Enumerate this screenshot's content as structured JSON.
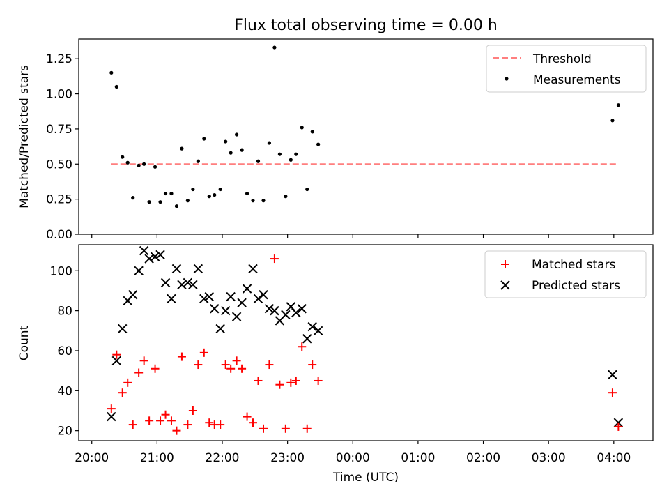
{
  "title": "Flux total observing time = 0.00 h",
  "chart_data": [
    {
      "type": "scatter",
      "ylabel": "Matched/Predicted stars",
      "xlabel": "",
      "x_unit": "hours since 20:00 UTC",
      "xlim": [
        -0.2,
        8.6
      ],
      "ylim": [
        0.0,
        1.39
      ],
      "yticks": [
        "0.00",
        "0.25",
        "0.50",
        "0.75",
        "1.00",
        "1.25"
      ],
      "legend_position": "top-right",
      "series": [
        {
          "name": "Threshold",
          "kind": "line",
          "style": "dashed",
          "color": "#ff7f7f",
          "x": [
            0.3,
            8.07
          ],
          "y": [
            0.5,
            0.5
          ]
        },
        {
          "name": "Measurements",
          "kind": "scatter",
          "marker": "dot",
          "color": "#000000",
          "x": [
            0.3,
            0.38,
            0.47,
            0.55,
            0.63,
            0.72,
            0.8,
            0.88,
            0.97,
            1.05,
            1.13,
            1.22,
            1.3,
            1.38,
            1.47,
            1.55,
            1.63,
            1.72,
            1.8,
            1.88,
            1.97,
            2.05,
            2.13,
            2.22,
            2.3,
            2.38,
            2.47,
            2.55,
            2.63,
            2.72,
            2.8,
            2.88,
            2.97,
            3.05,
            3.13,
            3.22,
            3.3,
            3.38,
            3.47,
            7.98,
            8.07
          ],
          "y": [
            1.15,
            1.05,
            0.55,
            0.51,
            0.26,
            0.49,
            0.5,
            0.23,
            0.48,
            0.23,
            0.29,
            0.29,
            0.2,
            0.61,
            0.24,
            0.32,
            0.52,
            0.68,
            0.27,
            0.28,
            0.32,
            0.66,
            0.58,
            0.71,
            0.6,
            0.29,
            0.24,
            0.52,
            0.24,
            0.65,
            1.33,
            0.57,
            0.27,
            0.53,
            0.57,
            0.76,
            0.32,
            0.73,
            0.64,
            0.81,
            0.92
          ]
        }
      ]
    },
    {
      "type": "scatter",
      "ylabel": "Count",
      "xlabel": "Time (UTC)",
      "x_unit": "hours since 20:00 UTC",
      "xlim": [
        -0.2,
        8.6
      ],
      "ylim": [
        15,
        113
      ],
      "yticks": [
        "20",
        "40",
        "60",
        "80",
        "100"
      ],
      "xticks": [
        "20:00",
        "21:00",
        "22:00",
        "23:00",
        "00:00",
        "01:00",
        "02:00",
        "03:00",
        "04:00"
      ],
      "legend_position": "top-right",
      "series": [
        {
          "name": "Matched stars",
          "marker": "plus",
          "color": "#ff0000",
          "x": [
            0.3,
            0.38,
            0.47,
            0.55,
            0.63,
            0.72,
            0.8,
            0.88,
            0.97,
            1.05,
            1.13,
            1.22,
            1.3,
            1.38,
            1.47,
            1.55,
            1.63,
            1.72,
            1.8,
            1.88,
            1.97,
            2.05,
            2.13,
            2.22,
            2.3,
            2.38,
            2.47,
            2.55,
            2.63,
            2.72,
            2.8,
            2.88,
            2.97,
            3.05,
            3.13,
            3.22,
            3.3,
            3.38,
            3.47,
            7.98,
            8.07
          ],
          "y": [
            31,
            58,
            39,
            44,
            23,
            49,
            55,
            25,
            51,
            25,
            28,
            25,
            20,
            57,
            23,
            30,
            53,
            59,
            24,
            23,
            23,
            53,
            51,
            55,
            51,
            27,
            24,
            45,
            21,
            53,
            106,
            43,
            21,
            44,
            45,
            62,
            21,
            53,
            45,
            39,
            22
          ]
        },
        {
          "name": "Predicted stars",
          "marker": "x",
          "color": "#000000",
          "x": [
            0.3,
            0.38,
            0.47,
            0.55,
            0.63,
            0.72,
            0.8,
            0.88,
            0.97,
            1.05,
            1.13,
            1.22,
            1.3,
            1.38,
            1.47,
            1.55,
            1.63,
            1.72,
            1.8,
            1.88,
            1.97,
            2.05,
            2.13,
            2.22,
            2.3,
            2.38,
            2.47,
            2.55,
            2.63,
            2.72,
            2.8,
            2.88,
            2.97,
            3.05,
            3.13,
            3.22,
            3.3,
            3.38,
            3.47,
            7.98,
            8.07
          ],
          "y": [
            27,
            55,
            71,
            85,
            88,
            100,
            110,
            106,
            107,
            108,
            94,
            86,
            101,
            93,
            94,
            93,
            101,
            86,
            87,
            81,
            71,
            80,
            87,
            77,
            84,
            91,
            101,
            86,
            88,
            81,
            80,
            75,
            78,
            82,
            79,
            81,
            66,
            72,
            70,
            48,
            24
          ]
        }
      ]
    }
  ]
}
